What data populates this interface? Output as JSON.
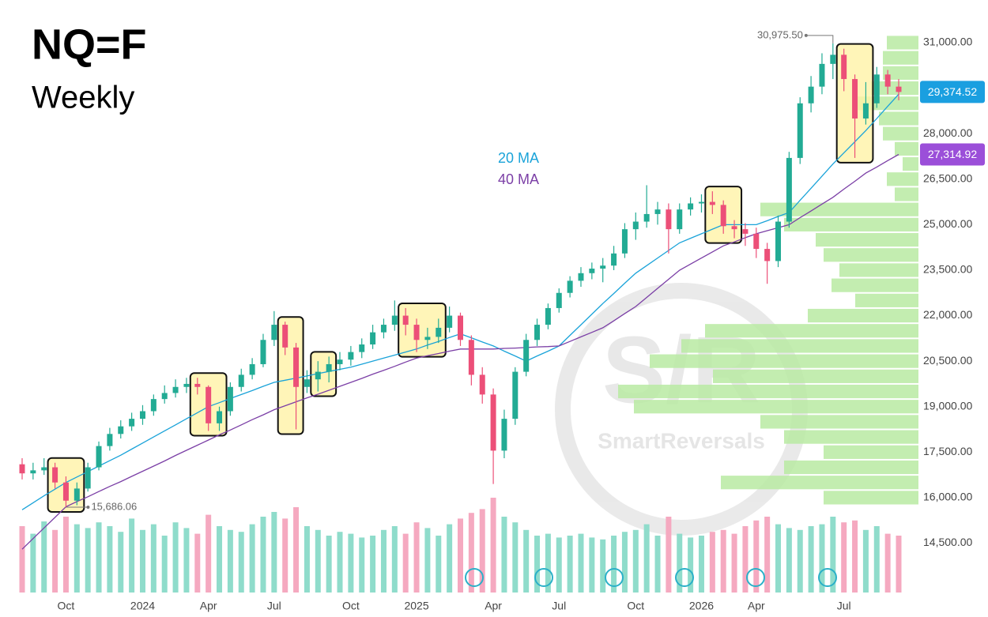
{
  "chart_data": {
    "type": "candlestick",
    "title": "NQ=F",
    "subtitle": "Weekly",
    "categories": [
      null,
      null,
      null,
      null,
      "Oct",
      null,
      null,
      null,
      null,
      null,
      null,
      "2024",
      null,
      null,
      null,
      null,
      null,
      "Apr",
      null,
      null,
      null,
      null,
      null,
      "Jul",
      null,
      null,
      null,
      null,
      null,
      null,
      "Oct",
      null,
      null,
      null,
      null,
      null,
      "2025",
      null,
      null,
      null,
      null,
      null,
      null,
      "Apr",
      null,
      null,
      null,
      null,
      null,
      "Jul",
      null,
      null,
      null,
      null,
      null,
      null,
      "Oct",
      null,
      null,
      null,
      null,
      null,
      "2026",
      null,
      null,
      null,
      null,
      "Apr",
      null,
      null,
      null,
      null,
      null,
      null,
      null,
      "Jul",
      null,
      null,
      null,
      null,
      null
    ],
    "candles": [
      [
        17100,
        17300,
        16600,
        16800
      ],
      [
        16800,
        17150,
        16600,
        16900
      ],
      [
        16900,
        17300,
        16750,
        17000
      ],
      [
        17000,
        17150,
        16300,
        16500
      ],
      [
        16500,
        16700,
        15686.06,
        15900
      ],
      [
        15900,
        16500,
        15750,
        16300
      ],
      [
        16300,
        17150,
        16200,
        17000
      ],
      [
        17000,
        17850,
        16900,
        17700
      ],
      [
        17700,
        18300,
        17550,
        18100
      ],
      [
        18100,
        18550,
        17950,
        18350
      ],
      [
        18350,
        18800,
        18200,
        18600
      ],
      [
        18600,
        19050,
        18400,
        18850
      ],
      [
        18850,
        19400,
        18700,
        19250
      ],
      [
        19250,
        19700,
        19100,
        19450
      ],
      [
        19450,
        19900,
        19300,
        19650
      ],
      [
        19650,
        19950,
        19450,
        19750
      ],
      [
        19750,
        19950,
        19400,
        19650
      ],
      [
        19650,
        19700,
        18200,
        18450
      ],
      [
        18450,
        19000,
        18200,
        18850
      ],
      [
        18850,
        19800,
        18700,
        19650
      ],
      [
        19650,
        20250,
        19500,
        20050
      ],
      [
        20050,
        20600,
        19900,
        20400
      ],
      [
        20400,
        21400,
        20300,
        21200
      ],
      [
        21200,
        22150,
        21000,
        21700
      ],
      [
        21700,
        21800,
        20700,
        20950
      ],
      [
        20950,
        21100,
        18250,
        19650
      ],
      [
        19650,
        20200,
        19450,
        19900
      ],
      [
        19900,
        20500,
        19500,
        20150
      ],
      [
        20150,
        20650,
        19800,
        20400
      ],
      [
        20400,
        20800,
        20200,
        20550
      ],
      [
        20550,
        21000,
        20350,
        20800
      ],
      [
        20800,
        21250,
        20600,
        21050
      ],
      [
        21050,
        21700,
        20900,
        21450
      ],
      [
        21450,
        21900,
        21250,
        21700
      ],
      [
        21700,
        22500,
        21500,
        22000
      ],
      [
        22000,
        22250,
        21350,
        21700
      ],
      [
        21700,
        21900,
        20800,
        21200
      ],
      [
        21200,
        21600,
        20900,
        21300
      ],
      [
        21300,
        21900,
        21100,
        21600
      ],
      [
        21600,
        22300,
        21450,
        22000
      ],
      [
        22000,
        22100,
        21000,
        21200
      ],
      [
        21200,
        21350,
        19700,
        20050
      ],
      [
        20050,
        20300,
        19100,
        19400
      ],
      [
        19400,
        19600,
        16450,
        17550
      ],
      [
        17550,
        18900,
        17300,
        18600
      ],
      [
        18600,
        20300,
        18400,
        20150
      ],
      [
        20150,
        21400,
        20000,
        21200
      ],
      [
        21200,
        21900,
        21000,
        21700
      ],
      [
        21700,
        22400,
        21550,
        22250
      ],
      [
        22250,
        22900,
        22100,
        22750
      ],
      [
        22750,
        23300,
        22600,
        23150
      ],
      [
        23150,
        23600,
        22950,
        23400
      ],
      [
        23400,
        23750,
        23200,
        23550
      ],
      [
        23550,
        23900,
        23100,
        23650
      ],
      [
        23650,
        24300,
        23500,
        24050
      ],
      [
        24050,
        25050,
        23900,
        24850
      ],
      [
        24850,
        25400,
        24500,
        25100
      ],
      [
        25100,
        26300,
        24900,
        25350
      ],
      [
        25350,
        25750,
        25000,
        25500
      ],
      [
        25500,
        25700,
        24050,
        24850
      ],
      [
        24850,
        25700,
        24700,
        25500
      ],
      [
        25500,
        25900,
        25300,
        25700
      ],
      [
        25700,
        26000,
        25400,
        25750
      ],
      [
        25750,
        26100,
        25350,
        25650
      ],
      [
        25650,
        25800,
        24700,
        24950
      ],
      [
        24950,
        25150,
        24550,
        24850
      ],
      [
        24850,
        25050,
        24300,
        24700
      ],
      [
        24700,
        24900,
        23900,
        24200
      ],
      [
        24200,
        24400,
        23050,
        23800
      ],
      [
        23800,
        25300,
        23600,
        25100
      ],
      [
        25100,
        27400,
        24900,
        27200
      ],
      [
        27200,
        29200,
        27000,
        29000
      ],
      [
        29000,
        29900,
        28700,
        29550
      ],
      [
        29550,
        30650,
        29300,
        30300
      ],
      [
        30300,
        30975.5,
        29800,
        30600
      ],
      [
        30600,
        30800,
        29400,
        29800
      ],
      [
        29800,
        29950,
        27200,
        28500
      ],
      [
        28500,
        29700,
        28300,
        29000
      ],
      [
        29000,
        30200,
        28850,
        29950
      ],
      [
        29950,
        30100,
        29300,
        29550
      ],
      [
        29550,
        29800,
        29100,
        29374.52
      ]
    ],
    "up_color": "#22ab94",
    "down_color": "#ec4f78",
    "volume_up_color": "#8fdccb",
    "volume_down_color": "#f5a9c0",
    "volume": [
      70,
      62,
      75,
      66,
      80,
      72,
      68,
      74,
      70,
      64,
      78,
      66,
      72,
      60,
      74,
      68,
      62,
      82,
      70,
      66,
      64,
      72,
      80,
      85,
      78,
      90,
      70,
      66,
      60,
      64,
      62,
      58,
      60,
      66,
      70,
      62,
      74,
      68,
      60,
      72,
      78,
      84,
      88,
      100,
      80,
      74,
      66,
      60,
      62,
      58,
      60,
      62,
      58,
      56,
      60,
      64,
      66,
      72,
      60,
      80,
      62,
      58,
      60,
      64,
      66,
      62,
      70,
      76,
      80,
      72,
      68,
      66,
      70,
      72,
      80,
      74,
      76,
      66,
      70,
      62,
      60
    ],
    "volume_lim": [
      0,
      100
    ],
    "ma": [
      {
        "name": "20 MA",
        "color": "#1aa3d9",
        "values": [
          15600,
          15830,
          16060,
          16280,
          16500,
          16680,
          16860,
          17040,
          17220,
          17400,
          17600,
          17800,
          18000,
          18200,
          18400,
          18600,
          18800,
          19000,
          19130,
          19270,
          19400,
          19530,
          19670,
          19800,
          19870,
          19940,
          20010,
          20090,
          20160,
          20230,
          20300,
          20400,
          20500,
          20600,
          20700,
          20800,
          20900,
          21030,
          21150,
          21280,
          21400,
          21270,
          21130,
          21000,
          20830,
          20670,
          20500,
          20670,
          20830,
          21000,
          21350,
          21700,
          22050,
          22400,
          22730,
          23070,
          23400,
          23650,
          23900,
          24150,
          24400,
          24550,
          24700,
          24850,
          25000,
          25000,
          25000,
          25000,
          25130,
          25270,
          25400,
          25800,
          26200,
          26600,
          27000,
          27370,
          27730,
          28100,
          28500,
          28900,
          29300
        ]
      },
      {
        "name": "40 MA",
        "color": "#7b3fa6",
        "values": [
          14300,
          14650,
          15000,
          15350,
          15700,
          15870,
          16030,
          16200,
          16370,
          16530,
          16700,
          16870,
          17040,
          17210,
          17390,
          17560,
          17730,
          17900,
          18070,
          18230,
          18400,
          18570,
          18730,
          18900,
          19030,
          19160,
          19290,
          19410,
          19540,
          19670,
          19800,
          19930,
          20070,
          20200,
          20330,
          20470,
          20600,
          20680,
          20750,
          20830,
          20900,
          20900,
          20900,
          20900,
          20920,
          20930,
          20950,
          20970,
          20980,
          21000,
          21150,
          21300,
          21450,
          21600,
          21830,
          22070,
          22300,
          22600,
          22900,
          23200,
          23500,
          23700,
          23900,
          24100,
          24300,
          24430,
          24570,
          24700,
          24800,
          24900,
          25000,
          25230,
          25450,
          25680,
          25900,
          26170,
          26430,
          26700,
          26900,
          27110,
          27314.92
        ]
      }
    ],
    "last_price": {
      "value": 29374.52,
      "label": "29,374.52",
      "color": "#1a9fe0"
    },
    "ma40_last": {
      "value": 27314.92,
      "label": "27,314.92",
      "color": "#9b4fd9"
    },
    "annotations": [
      {
        "label": "30,975.50",
        "candle": 74,
        "value": 30975.5
      },
      {
        "label": "15,686.06",
        "candle": 4,
        "value": 15686.06
      }
    ],
    "highlights": [
      [
        3,
        5
      ],
      [
        16,
        18
      ],
      [
        24,
        25
      ],
      [
        27,
        28
      ],
      [
        35,
        38
      ],
      [
        63,
        65
      ],
      [
        75,
        77
      ]
    ],
    "profile": {
      "color": "#b8eaa2",
      "lim": [
        0,
        400
      ],
      "levels": [
        31000,
        30500,
        30000,
        29500,
        29000,
        28500,
        28000,
        27500,
        27000,
        26500,
        26000,
        25500,
        25000,
        24500,
        24000,
        23500,
        23000,
        22500,
        22000,
        21500,
        21000,
        20500,
        20000,
        19500,
        19000,
        18500,
        18000,
        17500,
        17000,
        16500,
        16000
      ],
      "volumes": [
        40,
        45,
        45,
        60,
        80,
        50,
        45,
        30,
        20,
        40,
        30,
        200,
        170,
        130,
        120,
        100,
        110,
        80,
        140,
        270,
        300,
        340,
        260,
        380,
        360,
        200,
        170,
        120,
        170,
        250,
        120
      ]
    },
    "watermark": {
      "mark": "S/R",
      "name": "SmartReversals"
    },
    "ylim": [
      14000,
      32000
    ],
    "yticks": [
      {
        "value": 14500,
        "label": "14,500.00"
      },
      {
        "value": 16000,
        "label": "16,000.00"
      },
      {
        "value": 17500,
        "label": "17,500.00"
      },
      {
        "value": 19000,
        "label": "19,000.00"
      },
      {
        "value": 20500,
        "label": "20,500.00"
      },
      {
        "value": 22000,
        "label": "22,000.00"
      },
      {
        "value": 23500,
        "label": "23,500.00"
      },
      {
        "value": 25000,
        "label": "25,000.00"
      },
      {
        "value": 26500,
        "label": "26,500.00"
      },
      {
        "value": 28000,
        "label": "28,000.00"
      },
      {
        "value": 29500,
        "label": "29,500.00"
      },
      {
        "value": 31000,
        "label": "31,000.00"
      }
    ]
  }
}
